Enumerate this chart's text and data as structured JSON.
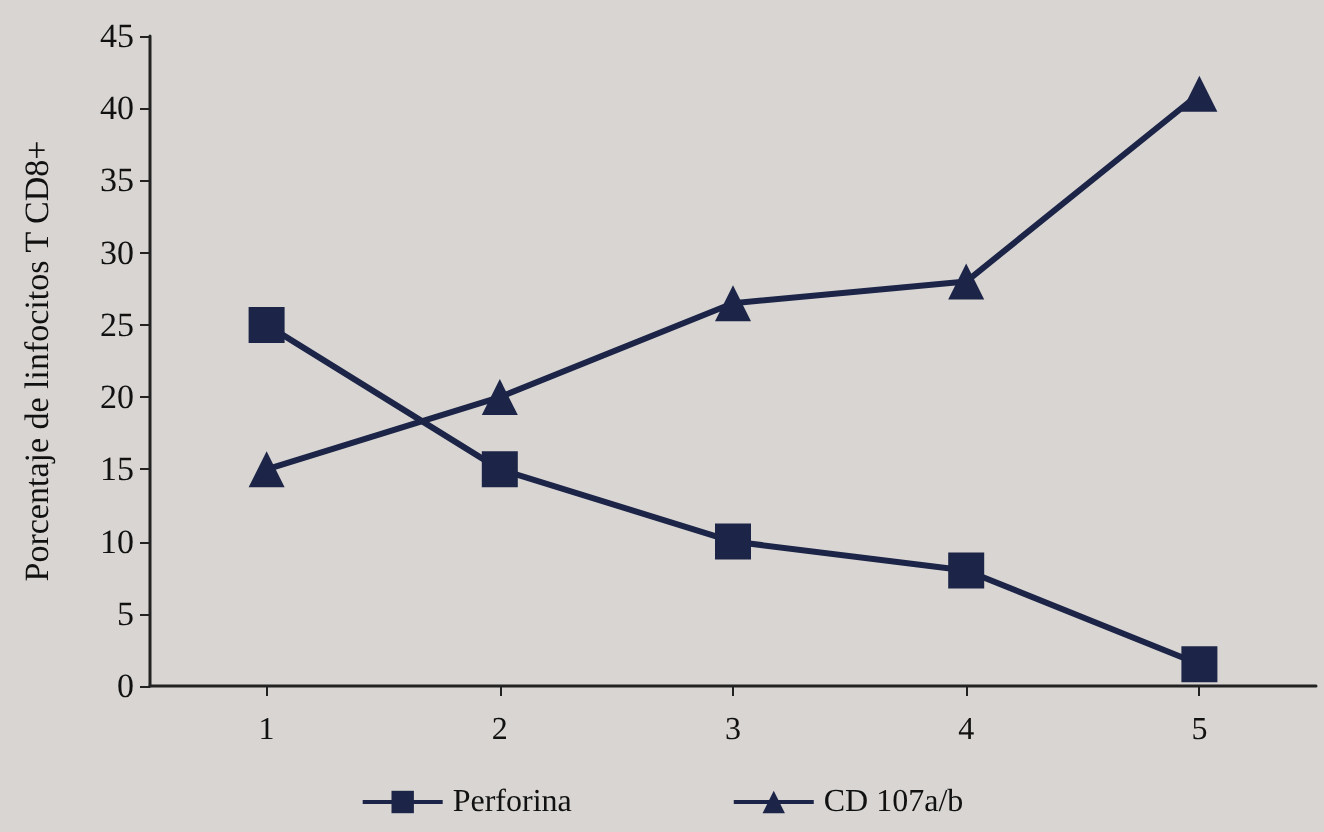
{
  "chart_data": {
    "type": "line",
    "ylabel": "Porcentaje de linfocitos T CD8+",
    "categories": [
      "1",
      "2",
      "3",
      "4",
      "5"
    ],
    "series": [
      {
        "name": "Perforina",
        "color": "#1c2547",
        "marker": "square",
        "values": [
          25,
          15,
          10,
          8,
          1.5
        ]
      },
      {
        "name": "CD 107a/b",
        "color": "#1c2547",
        "marker": "triangle",
        "values": [
          15,
          20,
          26.5,
          28,
          41
        ]
      }
    ],
    "ylim": [
      0,
      45
    ],
    "yticks": [
      0,
      5,
      10,
      15,
      20,
      25,
      30,
      35,
      40,
      45
    ],
    "grid": false,
    "legend": "bottom",
    "line_style": "solid"
  }
}
